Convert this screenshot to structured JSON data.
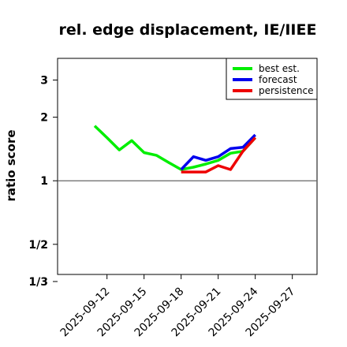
{
  "chart_data": {
    "type": "line",
    "title": "rel. edge displacement, IE/IIEE",
    "ylabel": "ratio score",
    "xlabel": "",
    "y_scale": "log",
    "ylim": [
      0.36,
      3.8
    ],
    "y_ticks": [
      {
        "value": 3,
        "label": "3"
      },
      {
        "value": 2,
        "label": "2"
      },
      {
        "value": 1,
        "label": "1"
      },
      {
        "value": 0.5,
        "label": "1/2"
      },
      {
        "value": 0.3333,
        "label": "1/3"
      }
    ],
    "xlim": [
      "2025-09-08",
      "2025-09-29"
    ],
    "x_ticks": [
      {
        "date": "2025-09-12",
        "label": "2025-09-12",
        "color": "#000000"
      },
      {
        "date": "2025-09-15",
        "label": "2025-09-15",
        "color": "#000000"
      },
      {
        "date": "2025-09-18",
        "label": "2025-09-18",
        "color": "#228B22"
      },
      {
        "date": "2025-09-21",
        "label": "2025-09-21",
        "color": "#000000"
      },
      {
        "date": "2025-09-24",
        "label": "2025-09-24",
        "color": "#000000"
      },
      {
        "date": "2025-09-27",
        "label": "2025-09-27",
        "color": "#000000"
      }
    ],
    "reference_line": 1,
    "legend_position": "top-right",
    "series": [
      {
        "name": "best est.",
        "color": "#00ee00",
        "points": [
          [
            "2025-09-11",
            1.82
          ],
          [
            "2025-09-12",
            1.6
          ],
          [
            "2025-09-13",
            1.4
          ],
          [
            "2025-09-14",
            1.55
          ],
          [
            "2025-09-15",
            1.36
          ],
          [
            "2025-09-16",
            1.32
          ],
          [
            "2025-09-17",
            1.22
          ],
          [
            "2025-09-18",
            1.13
          ],
          [
            "2025-09-19",
            1.16
          ],
          [
            "2025-09-20",
            1.2
          ],
          [
            "2025-09-21",
            1.25
          ],
          [
            "2025-09-22",
            1.35
          ],
          [
            "2025-09-23",
            1.38
          ],
          [
            "2025-09-24",
            1.6
          ]
        ]
      },
      {
        "name": "forecast",
        "color": "#0000ee",
        "points": [
          [
            "2025-09-18",
            1.13
          ],
          [
            "2025-09-19",
            1.3
          ],
          [
            "2025-09-20",
            1.25
          ],
          [
            "2025-09-21",
            1.3
          ],
          [
            "2025-09-22",
            1.42
          ],
          [
            "2025-09-23",
            1.44
          ],
          [
            "2025-09-24",
            1.65
          ]
        ]
      },
      {
        "name": "persistence",
        "color": "#ee0000",
        "points": [
          [
            "2025-09-18",
            1.1
          ],
          [
            "2025-09-19",
            1.1
          ],
          [
            "2025-09-20",
            1.1
          ],
          [
            "2025-09-21",
            1.18
          ],
          [
            "2025-09-22",
            1.13
          ],
          [
            "2025-09-23",
            1.38
          ],
          [
            "2025-09-24",
            1.6
          ]
        ]
      }
    ]
  }
}
